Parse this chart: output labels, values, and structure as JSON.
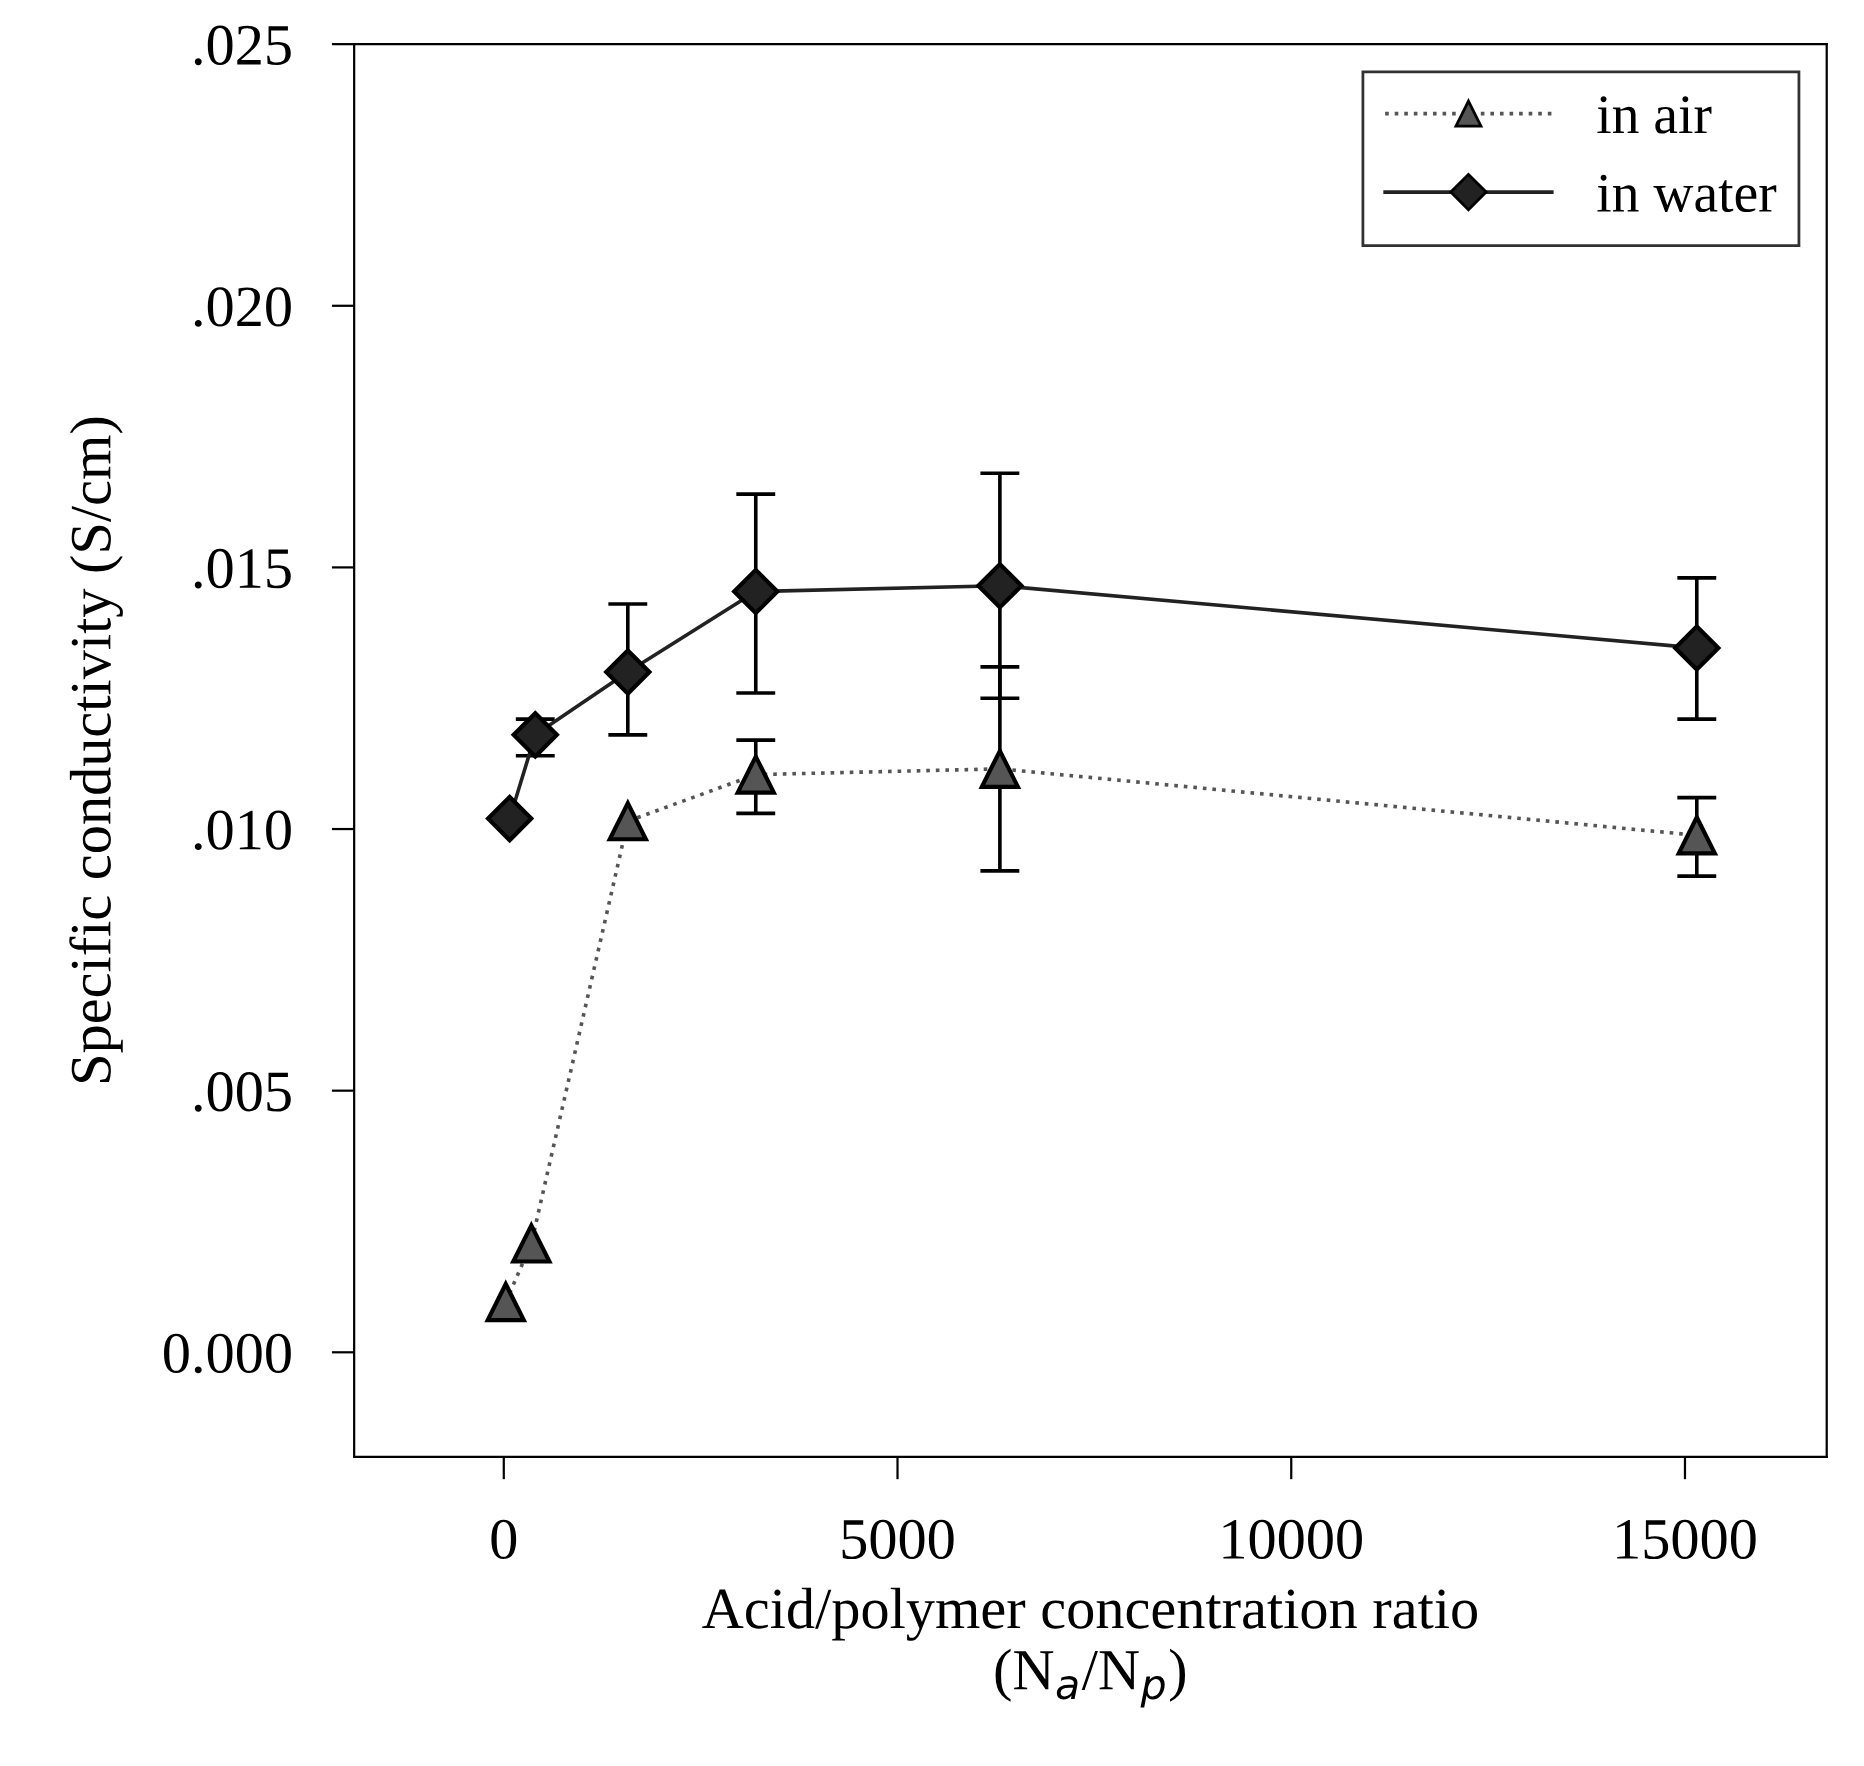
{
  "chart_data": {
    "type": "line",
    "xlabel": "Acid/polymer concentration ratio\n(N$_{a}$/N$_{p}$)",
    "ylabel": "Specific conductivity (S/cm)",
    "xlim": [
      -1900,
      16800
    ],
    "xticks": [
      0,
      5000,
      10000,
      15000
    ],
    "ylim": [
      -0.002,
      0.025
    ],
    "yticks": [
      {
        "value": 0,
        "label": "0.000"
      },
      {
        "value": 0.005,
        "label": ".005"
      },
      {
        "value": 0.01,
        "label": ".010"
      },
      {
        "value": 0.015,
        "label": ".015"
      },
      {
        "value": 0.02,
        "label": ".020"
      },
      {
        "value": 0.025,
        "label": ".025"
      }
    ],
    "grid": false,
    "legend": "top right",
    "series": [
      {
        "name": "in air",
        "color": "#555555",
        "marker": "triangle",
        "line_style": "dotted",
        "x": [
          25,
          350,
          1575,
          3200,
          6300,
          15150
        ],
        "values": [
          0.00096,
          0.00208,
          0.01015,
          0.01104,
          0.01115,
          0.00988
        ],
        "errors": [
          null,
          null,
          null,
          [
            0.0103,
            0.0117
          ],
          [
            0.0092,
            0.0131
          ],
          [
            0.0091,
            0.0106
          ]
        ]
      },
      {
        "name": "in water",
        "color": "#222222",
        "marker": "diamond",
        "line_style": "solid",
        "x": [
          75,
          400,
          1575,
          3200,
          6300,
          15150
        ],
        "values": [
          0.0102,
          0.0118,
          0.013,
          0.01454,
          0.01465,
          0.01346
        ],
        "errors": [
          null,
          [
            0.0114,
            0.0121
          ],
          [
            0.0118,
            0.0143
          ],
          [
            0.0126,
            0.0164
          ],
          [
            0.0125,
            0.0168
          ],
          [
            0.0121,
            0.0148
          ]
        ]
      }
    ]
  }
}
